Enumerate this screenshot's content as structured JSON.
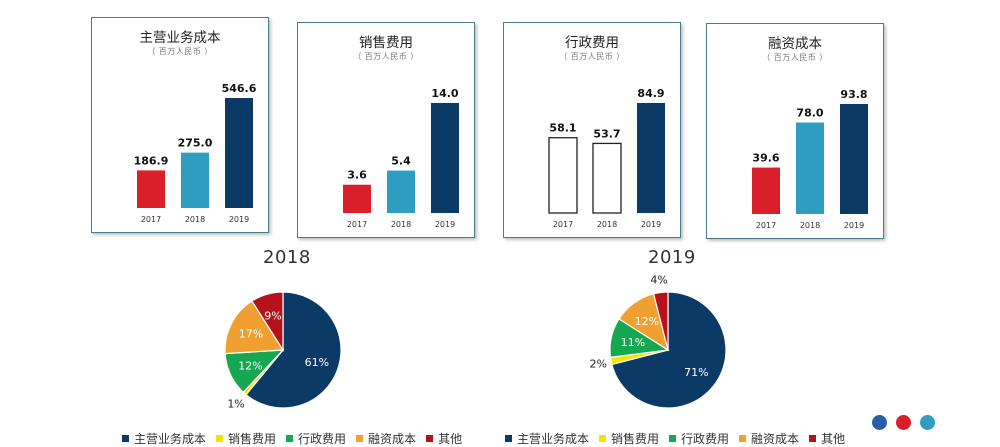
{
  "colors": {
    "navy": "#0c3a66",
    "teal": "#2e9dc0",
    "red": "#d9202a",
    "yellow": "#f5e400",
    "green": "#16a850",
    "orange": "#f0a030",
    "darkred": "#b5121b"
  },
  "chart_data": [
    {
      "type": "bar",
      "title": "主营业务成本",
      "unit": "（ 百万人民币 ）",
      "categories": [
        "2017",
        "2018",
        "2019"
      ],
      "values": [
        186.9,
        275.0,
        546.6
      ],
      "value_labels": [
        "186.9",
        "275.0",
        "546.6"
      ],
      "bar_colors": [
        "#d9202a",
        "#2e9dc0",
        "#0c3a66"
      ],
      "outlined": [
        false,
        false,
        false
      ],
      "ylim": [
        0,
        546.6
      ]
    },
    {
      "type": "bar",
      "title": "销售费用",
      "unit": "（ 百万人民币 ）",
      "categories": [
        "2017",
        "2018",
        "2019"
      ],
      "values": [
        3.6,
        5.4,
        14.0
      ],
      "value_labels": [
        "3.6",
        "5.4",
        "14.0"
      ],
      "bar_colors": [
        "#d9202a",
        "#2e9dc0",
        "#0c3a66"
      ],
      "outlined": [
        false,
        false,
        false
      ],
      "ylim": [
        0,
        14.0
      ]
    },
    {
      "type": "bar",
      "title": "行政费用",
      "unit": "（ 百万人民币 ）",
      "categories": [
        "2017",
        "2018",
        "2019"
      ],
      "values": [
        58.1,
        53.7,
        84.9
      ],
      "value_labels": [
        "58.1",
        "53.7",
        "84.9"
      ],
      "bar_colors": [
        "#ffffff",
        "#ffffff",
        "#0c3a66"
      ],
      "outlined": [
        true,
        true,
        false
      ],
      "ylim": [
        0,
        84.9
      ]
    },
    {
      "type": "bar",
      "title": "融资成本",
      "unit": "（ 百万人民币 ）",
      "categories": [
        "2017",
        "2018",
        "2019"
      ],
      "values": [
        39.6,
        78.0,
        93.8
      ],
      "value_labels": [
        "39.6",
        "78.0",
        "93.8"
      ],
      "bar_colors": [
        "#d9202a",
        "#2e9dc0",
        "#0c3a66"
      ],
      "outlined": [
        false,
        false,
        false
      ],
      "ylim": [
        0,
        93.8
      ]
    },
    {
      "type": "pie",
      "title": "2018",
      "categories": [
        "主营业务成本",
        "销售费用",
        "行政费用",
        "融资成本",
        "其他"
      ],
      "values": [
        61,
        1,
        12,
        17,
        9
      ],
      "labels": [
        "61%",
        "1%",
        "12%",
        "17%",
        "9%"
      ],
      "colors": [
        "#0c3a66",
        "#f5e400",
        "#16a850",
        "#f0a030",
        "#b5121b"
      ]
    },
    {
      "type": "pie",
      "title": "2019",
      "categories": [
        "主营业务成本",
        "销售费用",
        "行政费用",
        "融资成本",
        "其他"
      ],
      "values": [
        71,
        2,
        11,
        12,
        4
      ],
      "labels": [
        "71%",
        "2%",
        "11%",
        "12%",
        "4%"
      ],
      "colors": [
        "#0c3a66",
        "#f5e400",
        "#16a850",
        "#f0a030",
        "#b5121b"
      ]
    }
  ],
  "legend": [
    "主营业务成本",
    "销售费用",
    "行政费用",
    "融资成本",
    "其他"
  ],
  "page_dots": [
    "#2a5da8",
    "#d9202a",
    "#2e9dc0"
  ]
}
